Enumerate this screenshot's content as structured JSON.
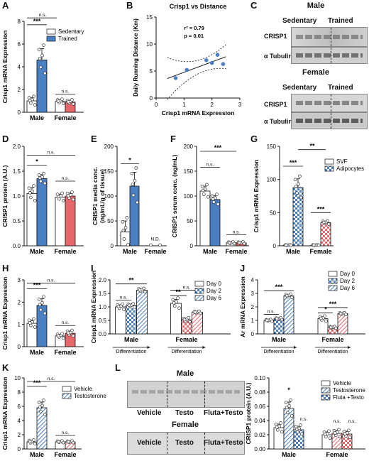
{
  "colors": {
    "sedentary": "#ffffff",
    "trained": "#4a7fc1",
    "female_trained": "#e8676b",
    "female_bar": "#f4a9ab",
    "axis": "#111111",
    "dot_fill": "#ffffff"
  },
  "panels": {
    "A": "A",
    "B": "B",
    "C": "C",
    "D": "D",
    "E": "E",
    "F": "F",
    "G": "G",
    "H": "H",
    "I": "I",
    "J": "J",
    "K": "K",
    "L": "L"
  },
  "blot_C": {
    "male_title": "Male",
    "female_title": "Female",
    "sedentary": "Sedentary",
    "trained": "Trained",
    "crisp1": "CRISP1",
    "tubulin": "α Tubulin"
  },
  "blot_L": {
    "male_title": "Male",
    "female_title": "Female",
    "lanes": [
      "Vehicle",
      "Testo",
      "Fluta+Testo"
    ]
  },
  "chart_data": [
    {
      "panel": "A",
      "type": "bar",
      "ylabel": "Crisp1 mRNA Expression",
      "ylim": [
        0,
        8
      ],
      "yticks": [
        "0",
        "2",
        "4",
        "6",
        "8"
      ],
      "categories": [
        "Male",
        "Female"
      ],
      "legend": [
        "Sedentary",
        "Trained"
      ],
      "series": [
        {
          "name": "Sedentary",
          "values": [
            1.0,
            0.95
          ],
          "errors": [
            0.3,
            0.15
          ]
        },
        {
          "name": "Trained",
          "values": [
            4.6,
            0.9
          ],
          "errors": [
            1.0,
            0.15
          ]
        }
      ],
      "annotations": [
        "***",
        "n.s.",
        "n.s."
      ]
    },
    {
      "panel": "B",
      "type": "scatter",
      "title": "Crisp1 vs Distance",
      "xlabel": "Crisp1 mRNA Expression",
      "ylabel": "Daily Running Distance (Km)",
      "xlim": [
        0,
        3
      ],
      "ylim": [
        0,
        15
      ],
      "xticks": [
        "0",
        "1",
        "2",
        "3"
      ],
      "yticks": [
        "0",
        "5",
        "10",
        "15"
      ],
      "points": [
        [
          0.7,
          3.7
        ],
        [
          1.1,
          5.2
        ],
        [
          1.8,
          7.0
        ],
        [
          2.0,
          6.5
        ],
        [
          2.2,
          8.0
        ],
        [
          2.4,
          6.3
        ]
      ],
      "annotations": [
        "r² = 0.79",
        "p = 0.01"
      ]
    },
    {
      "panel": "D",
      "type": "bar",
      "ylabel": "CRISP1 protein (A.U.)",
      "ylim": [
        0,
        2.0
      ],
      "yticks": [
        "0.0",
        "0.5",
        "1.0",
        "1.5",
        "2.0"
      ],
      "categories": [
        "Male",
        "Female"
      ],
      "series": [
        {
          "name": "Sedentary",
          "values": [
            1.05,
            0.98
          ],
          "errors": [
            0.12,
            0.06
          ]
        },
        {
          "name": "Trained",
          "values": [
            1.35,
            1.0
          ],
          "errors": [
            0.08,
            0.06
          ]
        }
      ],
      "annotations": [
        "*",
        "n.s.",
        "n.s."
      ]
    },
    {
      "panel": "E",
      "type": "bar",
      "ylabel": "CRISP1 media conc. (ng/mL/g of tissue)",
      "ylim": [
        0,
        200
      ],
      "yticks": [
        "0",
        "50",
        "100",
        "150",
        "200"
      ],
      "categories": [
        "Male",
        "Female"
      ],
      "series": [
        {
          "name": "Sedentary",
          "values": [
            28,
            0
          ],
          "errors": [
            22,
            0
          ]
        },
        {
          "name": "Trained",
          "values": [
            120,
            0
          ],
          "errors": [
            28,
            0
          ]
        }
      ],
      "annotations": [
        "*",
        "N.D."
      ]
    },
    {
      "panel": "F",
      "type": "bar",
      "ylabel": "CRISP1 serum conc. (ng/mL)",
      "ylim": [
        0,
        200
      ],
      "yticks": [
        "0",
        "50",
        "100",
        "150",
        "200"
      ],
      "categories": [
        "Male",
        "Female"
      ],
      "series": [
        {
          "name": "Sedentary",
          "values": [
            110,
            6
          ],
          "errors": [
            10,
            1.5
          ]
        },
        {
          "name": "Trained",
          "values": [
            93,
            6
          ],
          "errors": [
            8,
            1.5
          ]
        }
      ],
      "annotations": [
        "***",
        "n.s.",
        "n.s."
      ]
    },
    {
      "panel": "G",
      "type": "bar",
      "ylabel": "Crisp1 mRNA Expression",
      "ylim": [
        0,
        150
      ],
      "yticks": [
        "0",
        "50",
        "100",
        "150"
      ],
      "categories": [
        "Male",
        "Female"
      ],
      "legend": [
        "SVF",
        "Adipocytes"
      ],
      "series": [
        {
          "name": "SVF",
          "values": [
            1,
            1
          ],
          "errors": [
            0.3,
            0.3
          ]
        },
        {
          "name": "Adipocytes",
          "values": [
            88,
            35
          ],
          "errors": [
            13,
            2
          ]
        }
      ],
      "annotations": [
        "***",
        "***",
        "**"
      ]
    },
    {
      "panel": "H",
      "type": "bar",
      "ylabel": "Crisp1 mRNA Expression",
      "ylim": [
        0,
        3
      ],
      "yticks": [
        "0",
        "1",
        "2",
        "3"
      ],
      "categories": [
        "Male",
        "Female"
      ],
      "series": [
        {
          "name": "Sedentary",
          "values": [
            1.05,
            0.48
          ],
          "errors": [
            0.15,
            0.08
          ]
        },
        {
          "name": "Trained",
          "values": [
            1.85,
            0.6
          ],
          "errors": [
            0.3,
            0.1
          ]
        }
      ],
      "annotations": [
        "***",
        "n.s.",
        "n.s."
      ]
    },
    {
      "panel": "I",
      "type": "bar",
      "ylabel": "Crisp1 mRNA Expression",
      "ylim": [
        0,
        2.0
      ],
      "yticks": [
        "0.0",
        "0.5",
        "1.0",
        "1.5",
        "2.0"
      ],
      "categories": [
        "Male",
        "Female"
      ],
      "xsublabel": "Differentiation",
      "legend": [
        "Day 0",
        "Day 2",
        "Day 6"
      ],
      "series": [
        {
          "name": "Day 0",
          "values": [
            1.0,
            1.13
          ],
          "errors": [
            0.08,
            0.15
          ]
        },
        {
          "name": "Day 2",
          "values": [
            1.05,
            0.52
          ],
          "errors": [
            0.05,
            0.06
          ]
        },
        {
          "name": "Day 6",
          "values": [
            1.62,
            0.8
          ],
          "errors": [
            0.05,
            0.03
          ]
        }
      ],
      "annotations": [
        "**",
        "n.s.",
        "n.s.",
        "**"
      ]
    },
    {
      "panel": "J",
      "type": "bar",
      "ylabel": "Ar mRNA Expression",
      "ylim": [
        0,
        4
      ],
      "yticks": [
        "0",
        "1",
        "2",
        "3",
        "4"
      ],
      "categories": [
        "Male",
        "Female"
      ],
      "xsublabel": "Differentiation",
      "legend": [
        "Day 0",
        "Day 2",
        "Day 6"
      ],
      "series": [
        {
          "name": "Day 0",
          "values": [
            1.0,
            1.13
          ],
          "errors": [
            0.05,
            0.15
          ]
        },
        {
          "name": "Day 2",
          "values": [
            1.12,
            0.48
          ],
          "errors": [
            0.06,
            0.05
          ]
        },
        {
          "name": "Day 6",
          "values": [
            2.82,
            1.5
          ],
          "errors": [
            0.1,
            0.05
          ]
        }
      ],
      "annotations": [
        "***",
        "n.s.",
        "***",
        "*"
      ]
    },
    {
      "panel": "K",
      "type": "bar",
      "ylabel": "Crisp1 mRNA Expression",
      "ylim": [
        0,
        10
      ],
      "yticks": [
        "0",
        "2",
        "4",
        "6",
        "8",
        "10"
      ],
      "categories": [
        "Male",
        "Female"
      ],
      "legend": [
        "Vehicle",
        "Testosterone"
      ],
      "series": [
        {
          "name": "Vehicle",
          "values": [
            1.0,
            1.0
          ],
          "errors": [
            0.2,
            0.1
          ]
        },
        {
          "name": "Testosterone",
          "values": [
            5.8,
            1.0
          ],
          "errors": [
            0.8,
            0.1
          ]
        }
      ],
      "annotations": [
        "***",
        "n.s.",
        "n.s."
      ]
    },
    {
      "panel": "L",
      "type": "bar",
      "ylabel": "CRISP1 protein (A.U.)",
      "ylim": [
        0,
        0.1
      ],
      "yticks": [
        "0.00",
        "0.02",
        "0.04",
        "0.06",
        "0.08",
        "0.10"
      ],
      "categories": [
        "Male",
        "Female"
      ],
      "legend": [
        "Vehicle",
        "Testosterone",
        "Fluta +Testo"
      ],
      "series": [
        {
          "name": "Vehicle",
          "values": [
            0.03,
            0.02
          ],
          "errors": [
            0.005,
            0.004
          ]
        },
        {
          "name": "Testosterone",
          "values": [
            0.057,
            0.022
          ],
          "errors": [
            0.009,
            0.004
          ]
        },
        {
          "name": "Fluta +Testo",
          "values": [
            0.027,
            0.021
          ],
          "errors": [
            0.005,
            0.004
          ]
        }
      ],
      "annotations": [
        "*",
        "n.s.",
        "n.s.",
        "n.s."
      ]
    }
  ]
}
